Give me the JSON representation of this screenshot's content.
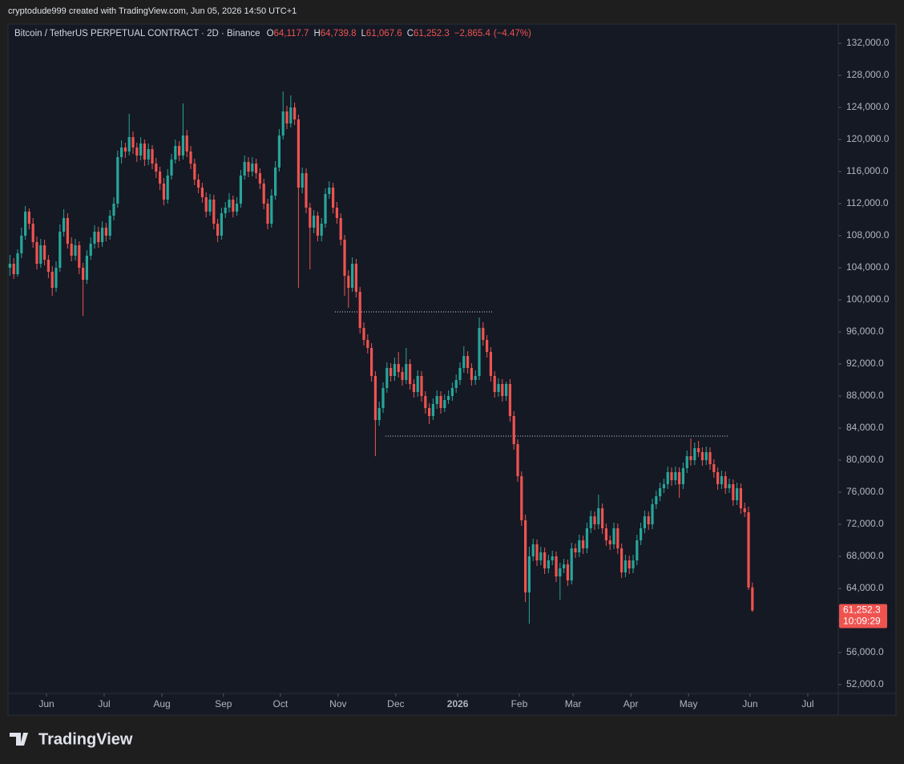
{
  "header": "cryptodude999 created with TradingView.com, Jun 05, 2026 14:50 UTC+1",
  "branding": "TradingView",
  "chart_data": {
    "type": "candlestick",
    "legend": {
      "symbol": "Bitcoin / TetherUS PERPETUAL CONTRACT · 2D · Binance",
      "fields": [
        {
          "key": "O",
          "value": 64117.7,
          "label": "64,117.7"
        },
        {
          "key": "H",
          "value": 64739.8,
          "label": "64,739.8"
        },
        {
          "key": "L",
          "value": 61067.6,
          "label": "61,067.6"
        },
        {
          "key": "C",
          "value": 61252.3,
          "label": "61,252.3"
        }
      ],
      "change": {
        "value": -2865.4,
        "label": "−2,865.4"
      },
      "change_pct": {
        "value": -4.47,
        "label": "(−4.47%)"
      }
    },
    "up_color": "#26a69a",
    "down_color": "#ef5350",
    "last_price": {
      "value": 61252.3,
      "label": "61,252.3"
    },
    "countdown": "10:09:29",
    "ylim": [
      50900,
      134400
    ],
    "yticks": [
      {
        "value": 52000,
        "label": "52,000.0"
      },
      {
        "value": 56000,
        "label": "56,000.0"
      },
      {
        "value": 60000,
        "label": "60,000.0"
      },
      {
        "value": 64000,
        "label": "64,000.0"
      },
      {
        "value": 68000,
        "label": "68,000.0"
      },
      {
        "value": 72000,
        "label": "72,000.0"
      },
      {
        "value": 76000,
        "label": "76,000.0"
      },
      {
        "value": 80000,
        "label": "80,000.0"
      },
      {
        "value": 84000,
        "label": "84,000.0"
      },
      {
        "value": 88000,
        "label": "88,000.0"
      },
      {
        "value": 92000,
        "label": "92,000.0"
      },
      {
        "value": 96000,
        "label": "96,000.0"
      },
      {
        "value": 100000,
        "label": "100,000.0"
      },
      {
        "value": 104000,
        "label": "104,000.0"
      },
      {
        "value": 108000,
        "label": "108,000.0"
      },
      {
        "value": 112000,
        "label": "112,000.0"
      },
      {
        "value": 116000,
        "label": "116,000.0"
      },
      {
        "value": 120000,
        "label": "120,000.0"
      },
      {
        "value": 124000,
        "label": "124,000.0"
      },
      {
        "value": 128000,
        "label": "128,000.0"
      },
      {
        "value": 132000,
        "label": "132,000.0"
      }
    ],
    "xlim": [
      -0.5,
      215.33
    ],
    "xticks": [
      {
        "value": 9.5,
        "label": "Jun"
      },
      {
        "value": 24.5,
        "label": "Jul"
      },
      {
        "value": 39.5,
        "label": "Aug"
      },
      {
        "value": 55.5,
        "label": "Sep"
      },
      {
        "value": 70.3,
        "label": "Oct"
      },
      {
        "value": 85.3,
        "label": "Nov"
      },
      {
        "value": 100.3,
        "label": "Dec"
      },
      {
        "value": 116.4,
        "label": "2026"
      },
      {
        "value": 132.4,
        "label": "Feb"
      },
      {
        "value": 146.4,
        "label": "Mar"
      },
      {
        "value": 161.4,
        "label": "Apr"
      },
      {
        "value": 176.4,
        "label": "May"
      },
      {
        "value": 192.4,
        "label": "Jun"
      },
      {
        "value": 207.4,
        "label": "Jul"
      }
    ],
    "hlines": [
      {
        "value": 98500,
        "from": 84.5,
        "to": 125.5
      },
      {
        "value": 83000,
        "from": 97.6,
        "to": 187
      }
    ],
    "candles": [
      [
        104000,
        105600,
        103000,
        104500
      ],
      [
        104500,
        105200,
        102600,
        103200
      ],
      [
        103200,
        106300,
        102900,
        105800
      ],
      [
        105800,
        109000,
        105200,
        108000
      ],
      [
        108000,
        111700,
        107500,
        111000
      ],
      [
        111000,
        111400,
        108800,
        109500
      ],
      [
        109500,
        110200,
        106500,
        107200
      ],
      [
        107200,
        107900,
        103800,
        104500
      ],
      [
        104500,
        107600,
        104000,
        106800
      ],
      [
        106800,
        107500,
        104300,
        105000
      ],
      [
        105000,
        105600,
        102700,
        103500
      ],
      [
        103500,
        104200,
        100500,
        101500
      ],
      [
        101500,
        104800,
        101000,
        104000
      ],
      [
        104000,
        109400,
        103500,
        108500
      ],
      [
        108500,
        111300,
        107900,
        110200
      ],
      [
        110200,
        110800,
        106400,
        107000
      ],
      [
        107000,
        107800,
        104800,
        105500
      ],
      [
        105500,
        107600,
        104900,
        106800
      ],
      [
        106800,
        107300,
        103200,
        104000
      ],
      [
        104000,
        104600,
        98000,
        102500
      ],
      [
        102500,
        106200,
        102000,
        105500
      ],
      [
        105500,
        107800,
        105000,
        107000
      ],
      [
        107000,
        109300,
        106400,
        108500
      ],
      [
        108500,
        109100,
        106500,
        107200
      ],
      [
        107200,
        109800,
        106600,
        109000
      ],
      [
        109000,
        109600,
        107300,
        108000
      ],
      [
        108000,
        111200,
        107500,
        110500
      ],
      [
        110500,
        112800,
        109900,
        112000
      ],
      [
        112000,
        118600,
        111500,
        117800
      ],
      [
        117800,
        119900,
        117000,
        119000
      ],
      [
        119000,
        119600,
        117700,
        118500
      ],
      [
        118500,
        123200,
        118000,
        120300
      ],
      [
        120300,
        121000,
        118200,
        119000
      ],
      [
        119000,
        119600,
        117200,
        118000
      ],
      [
        118000,
        120300,
        117400,
        119500
      ],
      [
        119500,
        120000,
        116700,
        117500
      ],
      [
        117500,
        119500,
        116800,
        118800
      ],
      [
        118800,
        119300,
        116300,
        117000
      ],
      [
        117000,
        117700,
        115200,
        116000
      ],
      [
        116000,
        116600,
        113700,
        114500
      ],
      [
        114500,
        115200,
        111800,
        112500
      ],
      [
        112500,
        116300,
        112000,
        115500
      ],
      [
        115500,
        118200,
        115000,
        117500
      ],
      [
        117500,
        120000,
        117000,
        119200
      ],
      [
        119200,
        119800,
        117300,
        118000
      ],
      [
        118000,
        124500,
        117500,
        120500
      ],
      [
        120500,
        121200,
        117800,
        118500
      ],
      [
        118500,
        119200,
        116300,
        117000
      ],
      [
        117000,
        117600,
        114300,
        115000
      ],
      [
        115000,
        115700,
        113300,
        114000
      ],
      [
        114000,
        114600,
        112100,
        112800
      ],
      [
        112800,
        113400,
        110300,
        111000
      ],
      [
        111000,
        113200,
        110500,
        112500
      ],
      [
        112500,
        113100,
        108800,
        109500
      ],
      [
        109500,
        110100,
        107200,
        108000
      ],
      [
        108000,
        111500,
        107500,
        110800
      ],
      [
        110800,
        112200,
        110200,
        111500
      ],
      [
        111500,
        113300,
        110900,
        112500
      ],
      [
        112500,
        113000,
        110300,
        111000
      ],
      [
        111000,
        112800,
        110500,
        112000
      ],
      [
        112000,
        116200,
        111500,
        115500
      ],
      [
        115500,
        118000,
        115000,
        117200
      ],
      [
        117200,
        117800,
        115300,
        116000
      ],
      [
        116000,
        117800,
        115400,
        117000
      ],
      [
        117000,
        117600,
        115100,
        115800
      ],
      [
        115800,
        116400,
        113800,
        114500
      ],
      [
        114500,
        115100,
        111300,
        112000
      ],
      [
        112000,
        112600,
        108800,
        109500
      ],
      [
        109500,
        113800,
        109000,
        113000
      ],
      [
        113000,
        117300,
        112500,
        116500
      ],
      [
        116500,
        121300,
        116000,
        120500
      ],
      [
        120500,
        126000,
        120000,
        123500
      ],
      [
        123500,
        124200,
        121300,
        122000
      ],
      [
        122000,
        125500,
        121500,
        124000
      ],
      [
        124000,
        124600,
        121800,
        122500
      ],
      [
        122500,
        123100,
        101500,
        114000
      ],
      [
        114000,
        116500,
        113300,
        115800
      ],
      [
        115800,
        116400,
        110800,
        111500
      ],
      [
        111500,
        112100,
        103800,
        109000
      ],
      [
        109000,
        111200,
        108300,
        110500
      ],
      [
        110500,
        111000,
        107300,
        108000
      ],
      [
        108000,
        110200,
        107300,
        109500
      ],
      [
        109500,
        113900,
        109000,
        113200
      ],
      [
        113200,
        114800,
        112600,
        114000
      ],
      [
        114000,
        114600,
        110800,
        111500
      ],
      [
        111500,
        112200,
        109500,
        110200
      ],
      [
        110200,
        110800,
        106800,
        107500
      ],
      [
        107500,
        108100,
        100500,
        103000
      ],
      [
        103000,
        103700,
        99000,
        101500
      ],
      [
        101500,
        105300,
        101000,
        104500
      ],
      [
        104500,
        105100,
        100300,
        101000
      ],
      [
        101000,
        101600,
        95800,
        96500
      ],
      [
        96500,
        97200,
        94300,
        95000
      ],
      [
        95000,
        95700,
        93300,
        94000
      ],
      [
        94000,
        94600,
        89800,
        90500
      ],
      [
        90500,
        91100,
        80500,
        85000
      ],
      [
        85000,
        87300,
        84300,
        86500
      ],
      [
        86500,
        89700,
        85900,
        89000
      ],
      [
        89000,
        92200,
        88400,
        91500
      ],
      [
        91500,
        92100,
        89800,
        90500
      ],
      [
        90500,
        92800,
        89900,
        92000
      ],
      [
        92000,
        93500,
        90300,
        91000
      ],
      [
        91000,
        91600,
        89300,
        90000
      ],
      [
        90000,
        94000,
        89500,
        92000
      ],
      [
        92000,
        92600,
        88800,
        89500
      ],
      [
        89500,
        90100,
        87800,
        88500
      ],
      [
        88500,
        91200,
        87900,
        90500
      ],
      [
        90500,
        91100,
        87300,
        88000
      ],
      [
        88000,
        88600,
        85800,
        86500
      ],
      [
        86500,
        87100,
        84500,
        85500
      ],
      [
        85500,
        87700,
        85000,
        87000
      ],
      [
        87000,
        88700,
        86400,
        88000
      ],
      [
        88000,
        88600,
        85800,
        86500
      ],
      [
        86500,
        88200,
        86000,
        87500
      ],
      [
        87500,
        88700,
        87000,
        88000
      ],
      [
        88000,
        89700,
        87400,
        89000
      ],
      [
        89000,
        90700,
        88400,
        90000
      ],
      [
        90000,
        92200,
        89400,
        91500
      ],
      [
        91500,
        94200,
        90900,
        93000
      ],
      [
        93000,
        93600,
        90800,
        91500
      ],
      [
        91500,
        92100,
        89300,
        90000
      ],
      [
        90000,
        91200,
        89400,
        90500
      ],
      [
        90500,
        97800,
        90000,
        96500
      ],
      [
        96500,
        97200,
        94300,
        95000
      ],
      [
        95000,
        95600,
        92800,
        93500
      ],
      [
        93500,
        94100,
        89800,
        90500
      ],
      [
        90500,
        91100,
        87800,
        88500
      ],
      [
        88500,
        90200,
        87900,
        89500
      ],
      [
        89500,
        90100,
        87300,
        88000
      ],
      [
        88000,
        89800,
        87400,
        89500
      ],
      [
        89500,
        90100,
        84800,
        85500
      ],
      [
        85500,
        86100,
        81300,
        82000
      ],
      [
        82000,
        82600,
        77300,
        78000
      ],
      [
        78000,
        78600,
        71800,
        72500
      ],
      [
        72500,
        73200,
        62300,
        63500
      ],
      [
        63500,
        69200,
        59600,
        68000
      ],
      [
        68000,
        70200,
        67400,
        69500
      ],
      [
        69500,
        70100,
        66800,
        67500
      ],
      [
        67500,
        69200,
        66900,
        68500
      ],
      [
        68500,
        69100,
        65800,
        66500
      ],
      [
        66500,
        68200,
        65900,
        67500
      ],
      [
        67500,
        68700,
        66900,
        68000
      ],
      [
        68000,
        68600,
        64800,
        65500
      ],
      [
        65500,
        67200,
        62600,
        66500
      ],
      [
        66500,
        67700,
        65900,
        67000
      ],
      [
        67000,
        67600,
        64300,
        65000
      ],
      [
        65000,
        69700,
        64500,
        69000
      ],
      [
        69000,
        69600,
        67800,
        68500
      ],
      [
        68500,
        70700,
        67900,
        70000
      ],
      [
        70000,
        70600,
        68300,
        69000
      ],
      [
        69000,
        72200,
        68400,
        71500
      ],
      [
        71500,
        73700,
        70900,
        73000
      ],
      [
        73000,
        73600,
        71300,
        72000
      ],
      [
        72000,
        75700,
        71400,
        74000
      ],
      [
        74000,
        74600,
        70800,
        71500
      ],
      [
        71500,
        72100,
        69300,
        70000
      ],
      [
        70000,
        70600,
        68800,
        69500
      ],
      [
        69500,
        72200,
        68900,
        71500
      ],
      [
        71500,
        72100,
        68300,
        69000
      ],
      [
        69000,
        69600,
        65300,
        66000
      ],
      [
        66000,
        68200,
        65400,
        67500
      ],
      [
        67500,
        68100,
        65800,
        66500
      ],
      [
        66500,
        68200,
        65900,
        67500
      ],
      [
        67500,
        70700,
        66900,
        70000
      ],
      [
        70000,
        72200,
        69400,
        71500
      ],
      [
        71500,
        73700,
        70900,
        73000
      ],
      [
        73000,
        73600,
        71300,
        72000
      ],
      [
        72000,
        75200,
        71400,
        74500
      ],
      [
        74500,
        76200,
        73900,
        75500
      ],
      [
        75500,
        77200,
        74900,
        76500
      ],
      [
        76500,
        77700,
        75900,
        77000
      ],
      [
        77000,
        79200,
        76400,
        78500
      ],
      [
        78500,
        79100,
        76800,
        77500
      ],
      [
        77500,
        79200,
        76900,
        78500
      ],
      [
        78500,
        79100,
        75300,
        77000
      ],
      [
        77000,
        79700,
        76400,
        79000
      ],
      [
        79000,
        81200,
        78400,
        80500
      ],
      [
        80500,
        82700,
        79300,
        80000
      ],
      [
        80000,
        82200,
        79400,
        81500
      ],
      [
        81500,
        82400,
        80400,
        81000
      ],
      [
        81000,
        81600,
        79300,
        80000
      ],
      [
        80000,
        81700,
        79400,
        81000
      ],
      [
        81000,
        81600,
        78800,
        79500
      ],
      [
        79500,
        80100,
        77800,
        78500
      ],
      [
        78500,
        79100,
        76300,
        77000
      ],
      [
        77000,
        78700,
        76400,
        78000
      ],
      [
        78000,
        78600,
        75800,
        76500
      ],
      [
        76500,
        77700,
        75900,
        77000
      ],
      [
        77000,
        77600,
        74300,
        75000
      ],
      [
        75000,
        77200,
        74400,
        76500
      ],
      [
        76500,
        77100,
        73300,
        74000
      ],
      [
        74000,
        74700,
        72900,
        73500
      ],
      [
        73500,
        74200,
        63800,
        64117.7
      ],
      [
        64117.7,
        64739.8,
        61067.6,
        61252.3
      ]
    ]
  }
}
